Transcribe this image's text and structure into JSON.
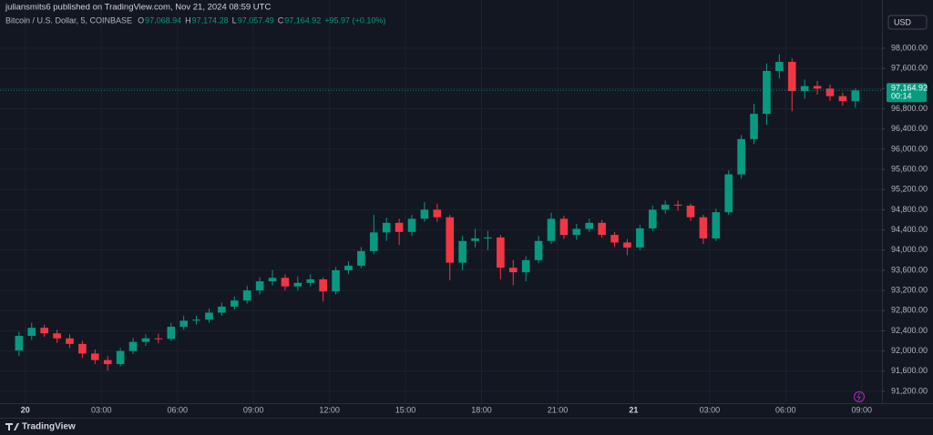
{
  "chart_data": {
    "type": "candlestick",
    "publish_note": "juliansmits6 published on TradingView.com, Nov 21, 2024 08:59 UTC",
    "title": "Bitcoin / U.S. Dollar, 5, COINBASE",
    "ohlc_legend": [
      {
        "key": "O",
        "value": "97,068.94"
      },
      {
        "key": "H",
        "value": "97,174.28"
      },
      {
        "key": "L",
        "value": "97,057.49"
      },
      {
        "key": "C",
        "value": "97,164.92"
      }
    ],
    "change": "+95.97 (+0.10%)",
    "currency": "USD",
    "brand": "TradingView",
    "last_price": {
      "value": 97164.92,
      "label": "97,164.92"
    },
    "countdown": "00:14",
    "up_color": "#089981",
    "down_color": "#f23645",
    "grid": true,
    "xlim": [
      -1.0,
      33.8
    ],
    "ylim": [
      90966,
      98667
    ],
    "xticks": [
      {
        "value": 0,
        "label": "20"
      },
      {
        "value": 3,
        "label": "03:00"
      },
      {
        "value": 6,
        "label": "06:00"
      },
      {
        "value": 9,
        "label": "09:00"
      },
      {
        "value": 12,
        "label": "12:00"
      },
      {
        "value": 15,
        "label": "15:00"
      },
      {
        "value": 18,
        "label": "18:00"
      },
      {
        "value": 21,
        "label": "21:00"
      },
      {
        "value": 24,
        "label": "21"
      },
      {
        "value": 27,
        "label": "03:00"
      },
      {
        "value": 30,
        "label": "06:00"
      },
      {
        "value": 33,
        "label": "09:00"
      }
    ],
    "yticks": [
      {
        "value": 91200,
        "label": "91,200.00"
      },
      {
        "value": 91600,
        "label": "91,600.00"
      },
      {
        "value": 92000,
        "label": "92,000.00"
      },
      {
        "value": 92400,
        "label": "92,400.00"
      },
      {
        "value": 92800,
        "label": "92,800.00"
      },
      {
        "value": 93200,
        "label": "93,200.00"
      },
      {
        "value": 93600,
        "label": "93,600.00"
      },
      {
        "value": 94000,
        "label": "94,000.00"
      },
      {
        "value": 94400,
        "label": "94,400.00"
      },
      {
        "value": 94800,
        "label": "94,800.00"
      },
      {
        "value": 95200,
        "label": "95,200.00"
      },
      {
        "value": 95600,
        "label": "95,600.00"
      },
      {
        "value": 96000,
        "label": "96,000.00"
      },
      {
        "value": 96400,
        "label": "96,400.00"
      },
      {
        "value": 96800,
        "label": "96,800.00"
      },
      {
        "value": 97200,
        "label": "97,200.00"
      },
      {
        "value": 97600,
        "label": "97,600.00"
      },
      {
        "value": 98000,
        "label": "98,000.00"
      }
    ],
    "x": [
      -0.25,
      0.25,
      0.75,
      1.25,
      1.75,
      2.25,
      2.75,
      3.25,
      3.75,
      4.25,
      4.75,
      5.25,
      5.75,
      6.25,
      6.75,
      7.25,
      7.75,
      8.25,
      8.75,
      9.25,
      9.75,
      10.25,
      10.75,
      11.25,
      11.75,
      12.25,
      12.75,
      13.25,
      13.75,
      14.25,
      14.75,
      15.25,
      15.75,
      16.25,
      16.75,
      17.25,
      17.75,
      18.25,
      18.75,
      19.25,
      19.75,
      20.25,
      20.75,
      21.25,
      21.75,
      22.25,
      22.75,
      23.25,
      23.75,
      24.25,
      24.75,
      25.25,
      25.75,
      26.25,
      26.75,
      27.25,
      27.75,
      28.25,
      28.75,
      29.25,
      29.75,
      30.25,
      30.75,
      31.25,
      31.75,
      32.25,
      32.75
    ],
    "open": [
      92010,
      92300,
      92460,
      92350,
      92250,
      92140,
      91950,
      91820,
      91740,
      92000,
      92180,
      92250,
      92240,
      92480,
      92600,
      92620,
      92760,
      92880,
      93000,
      93200,
      93380,
      93450,
      93280,
      93350,
      93420,
      93180,
      93600,
      93690,
      93980,
      94350,
      94540,
      94360,
      94620,
      94800,
      94650,
      93750,
      94180,
      94230,
      94250,
      93650,
      93560,
      93800,
      94180,
      94620,
      94300,
      94420,
      94540,
      94300,
      94150,
      94050,
      94430,
      94800,
      94900,
      94880,
      94650,
      94230,
      94750,
      95500,
      96200,
      96700,
      97550,
      97730,
      97150,
      97250,
      97200,
      97050,
      96950
    ],
    "high": [
      92380,
      92560,
      92520,
      92420,
      92330,
      92200,
      92030,
      91900,
      92060,
      92260,
      92330,
      92340,
      92560,
      92700,
      92700,
      92840,
      92960,
      93080,
      93290,
      93460,
      93600,
      93520,
      93480,
      93520,
      93460,
      93660,
      93780,
      94060,
      94700,
      94640,
      94620,
      94700,
      94950,
      94920,
      94700,
      94280,
      94420,
      94380,
      94300,
      93800,
      93880,
      94280,
      94740,
      94680,
      94520,
      94620,
      94600,
      94360,
      94220,
      94500,
      94880,
      94980,
      94980,
      94920,
      94700,
      94820,
      95580,
      96280,
      96900,
      97700,
      97880,
      97800,
      97380,
      97350,
      97280,
      97120,
      97200
    ],
    "low": [
      91900,
      92220,
      92280,
      92160,
      92060,
      91860,
      91740,
      91610,
      91700,
      91940,
      92100,
      92150,
      92200,
      92420,
      92520,
      92560,
      92700,
      92820,
      92940,
      93120,
      93300,
      93200,
      93200,
      93280,
      92980,
      93120,
      93520,
      93640,
      93920,
      94180,
      94100,
      94280,
      94560,
      94560,
      93400,
      93600,
      94050,
      94000,
      93420,
      93300,
      93380,
      93740,
      94120,
      94220,
      94200,
      94360,
      94240,
      94060,
      93900,
      94000,
      94380,
      94720,
      94780,
      94580,
      94120,
      94180,
      94700,
      95420,
      96100,
      96480,
      97400,
      96750,
      97000,
      97080,
      96960,
      96860,
      96820
    ],
    "close": [
      92300,
      92460,
      92350,
      92250,
      92140,
      91950,
      91820,
      91740,
      92000,
      92180,
      92250,
      92240,
      92480,
      92600,
      92620,
      92760,
      92880,
      93000,
      93200,
      93380,
      93450,
      93280,
      93350,
      93420,
      93180,
      93600,
      93690,
      93980,
      94350,
      94540,
      94360,
      94620,
      94800,
      94650,
      93750,
      94180,
      94230,
      94250,
      93650,
      93560,
      93800,
      94180,
      94620,
      94300,
      94420,
      94540,
      94300,
      94150,
      94050,
      94430,
      94800,
      94900,
      94880,
      94650,
      94230,
      94750,
      95500,
      96200,
      96700,
      97550,
      97730,
      97150,
      97250,
      97200,
      97050,
      96950,
      97164.92
    ]
  }
}
